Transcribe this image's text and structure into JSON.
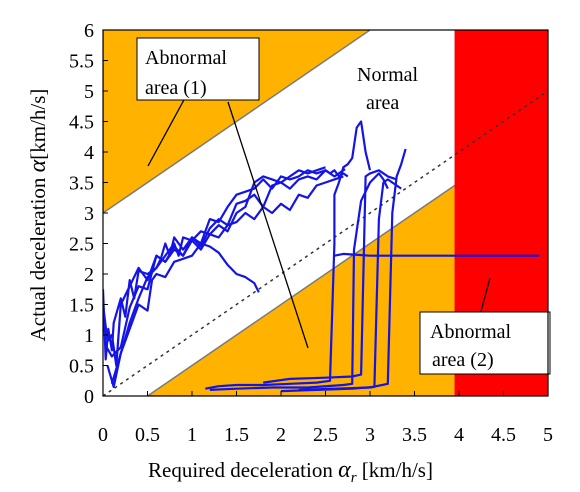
{
  "chart_data": {
    "type": "line",
    "xlabel_main": "Required deceleration ",
    "xlabel_symbol": "α",
    "xlabel_sub": "r",
    "xlabel_unit": " [km/h/s]",
    "ylabel_main": "Actual deceleration ",
    "ylabel_symbol": "α",
    "ylabel_unit": "[km/h/s]",
    "xlim": [
      0,
      5
    ],
    "ylim": [
      0,
      6
    ],
    "x_ticks": [
      "0",
      "0.5",
      "1",
      "1.5",
      "2",
      "2.5",
      "3",
      "3.5",
      "4",
      "4.5",
      "5"
    ],
    "y_ticks": [
      "0",
      "0.5",
      "1",
      "1.5",
      "2",
      "2.5",
      "3",
      "3.5",
      "4",
      "4.5",
      "5",
      "5.5",
      "6"
    ],
    "colors": {
      "abnormal_orange": "#FFB300",
      "abnormal_red": "#FF0000",
      "traces": "#1414E6",
      "boundary": "#7a7a7a"
    },
    "reference_line": {
      "x": [
        0,
        5
      ],
      "y": [
        0,
        5
      ]
    },
    "upper_boundary": {
      "x": [
        0,
        5
      ],
      "y": [
        3,
        8
      ]
    },
    "lower_boundary": {
      "x": [
        0.5,
        5
      ],
      "y": [
        0,
        4.5
      ]
    },
    "red_region_x": [
      3.95,
      5
    ],
    "annotations": {
      "abnormal1_line1": "Abnor",
      "abnormal1_line2": "mal",
      "abnormal1_line3": "area (1)",
      "normal_line1": "Normal",
      "normal_line2": "area",
      "abnormal2_line1": "Abnormal",
      "abnormal2_line2": "area (2)"
    },
    "series": [
      {
        "x": [
          0.0,
          0.03,
          0.06,
          0.1,
          0.12,
          0.2,
          0.25,
          0.3,
          0.35,
          0.4,
          0.5,
          0.6,
          0.65,
          0.7,
          0.75,
          0.8,
          0.9,
          1.0,
          1.1,
          1.2,
          1.3,
          1.4,
          1.5,
          1.6,
          1.7,
          1.8,
          1.9,
          2.0,
          2.1,
          2.2,
          2.3,
          2.4,
          2.5,
          2.6,
          2.65,
          2.7,
          2.72
        ],
        "y": [
          1.75,
          0.6,
          1.1,
          0.75,
          1.2,
          1.6,
          1.3,
          1.9,
          1.6,
          2.05,
          2.0,
          2.1,
          2.25,
          2.5,
          2.3,
          2.6,
          2.4,
          2.6,
          2.45,
          2.75,
          2.9,
          2.8,
          3.15,
          3.2,
          3.3,
          3.1,
          3.45,
          3.5,
          3.4,
          3.55,
          3.6,
          3.55,
          3.7,
          3.6,
          3.65,
          3.7,
          3.72
        ]
      },
      {
        "x": [
          0.0,
          0.05,
          0.1,
          0.15,
          0.2,
          0.3,
          0.4,
          0.5,
          0.6,
          0.7,
          0.8,
          0.9,
          1.0,
          1.1,
          1.2,
          1.3,
          1.4,
          1.5,
          1.6,
          1.7,
          1.8,
          1.9,
          2.0,
          2.1,
          2.2,
          2.3,
          2.4,
          2.5,
          2.55,
          2.6,
          2.65,
          2.7,
          2.75
        ],
        "y": [
          1.5,
          0.9,
          1.0,
          0.5,
          1.5,
          1.8,
          2.1,
          1.9,
          2.3,
          2.2,
          2.4,
          2.3,
          2.6,
          2.5,
          2.9,
          2.85,
          3.1,
          3.3,
          3.35,
          3.4,
          3.55,
          3.4,
          3.6,
          3.55,
          3.6,
          3.7,
          3.65,
          3.7,
          3.65,
          3.7,
          3.6,
          3.65,
          3.6
        ]
      },
      {
        "x": [
          0.02,
          0.1,
          0.2,
          0.3,
          0.4,
          0.5,
          0.6,
          0.7,
          0.8,
          0.9,
          1.0,
          1.1,
          1.2,
          1.3,
          1.4,
          1.5,
          1.6,
          1.7,
          1.8,
          1.9,
          2.0,
          2.1,
          2.2,
          2.3,
          2.4,
          2.5,
          2.6,
          2.7
        ],
        "y": [
          0.85,
          0.65,
          0.8,
          1.45,
          1.8,
          1.75,
          2.3,
          2.2,
          2.45,
          2.3,
          2.55,
          2.4,
          2.65,
          2.6,
          2.8,
          2.85,
          3.0,
          2.9,
          3.1,
          3.0,
          3.15,
          3.05,
          3.3,
          3.25,
          3.45,
          3.5,
          3.55,
          3.6
        ]
      },
      {
        "x": [
          0.05,
          0.12,
          0.2,
          0.3,
          0.4,
          0.5,
          0.55,
          0.6,
          0.7,
          0.8,
          0.9,
          1.0,
          1.1,
          1.2,
          1.3,
          1.4,
          1.5,
          1.6,
          1.7,
          1.75
        ],
        "y": [
          0.5,
          0.15,
          0.7,
          1.1,
          1.5,
          1.4,
          1.9,
          2.0,
          1.95,
          2.2,
          2.25,
          2.3,
          2.5,
          2.45,
          2.35,
          2.15,
          2.0,
          1.95,
          1.85,
          1.7
        ]
      },
      {
        "x": [
          0.1,
          0.2,
          0.3,
          0.4,
          0.5,
          0.6,
          0.7,
          0.8,
          0.85,
          0.9,
          1.0,
          1.1,
          1.2,
          1.3,
          1.4,
          1.5,
          1.6,
          1.7,
          1.8,
          1.9,
          2.0,
          2.1,
          2.2,
          2.3,
          2.4,
          2.5
        ],
        "y": [
          0.2,
          0.7,
          1.2,
          1.6,
          1.95,
          2.1,
          2.3,
          2.5,
          2.3,
          2.6,
          2.55,
          2.7,
          2.65,
          2.8,
          2.7,
          3.0,
          3.1,
          3.5,
          3.6,
          3.55,
          3.5,
          3.6,
          3.7,
          3.65,
          3.7,
          3.75
        ]
      },
      {
        "x": [
          1.15,
          1.3,
          1.5,
          1.8,
          2.1,
          2.4,
          2.55,
          2.6,
          2.6,
          2.65,
          2.7,
          2.75,
          2.8,
          2.85,
          2.9,
          2.95,
          3.0
        ],
        "y": [
          0.12,
          0.16,
          0.18,
          0.18,
          0.2,
          0.22,
          0.25,
          2.5,
          3.3,
          3.5,
          3.75,
          3.8,
          3.9,
          4.4,
          4.5,
          4.0,
          3.7
        ]
      },
      {
        "x": [
          1.2,
          1.5,
          1.9,
          2.3,
          2.7,
          2.8,
          2.82,
          2.9,
          3.0,
          3.1,
          3.15,
          3.2
        ],
        "y": [
          0.1,
          0.12,
          0.14,
          0.14,
          0.18,
          0.2,
          2.4,
          3.2,
          3.5,
          3.65,
          3.55,
          3.4
        ]
      },
      {
        "x": [
          1.8,
          2.1,
          2.5,
          2.8,
          2.9,
          2.95,
          3.0,
          3.1,
          3.2,
          3.3
        ],
        "y": [
          0.22,
          0.28,
          0.3,
          0.32,
          0.35,
          3.6,
          3.65,
          3.7,
          3.6,
          3.55
        ]
      },
      {
        "x": [
          2.0,
          2.4,
          2.8,
          3.05,
          3.1,
          3.15,
          3.2,
          3.25,
          3.3,
          3.35
        ],
        "y": [
          0.08,
          0.1,
          0.12,
          0.15,
          2.9,
          3.5,
          3.55,
          3.5,
          3.45,
          3.4
        ]
      },
      {
        "x": [
          2.2,
          2.6,
          3.0,
          3.2,
          3.25,
          3.3,
          3.35,
          3.4
        ],
        "y": [
          0.1,
          0.12,
          0.14,
          0.2,
          3.0,
          3.6,
          3.8,
          4.05
        ]
      },
      {
        "x": [
          2.6,
          2.7,
          2.8,
          3.0,
          3.5,
          4.0,
          4.5,
          4.9
        ],
        "y": [
          2.3,
          2.33,
          2.32,
          2.3,
          2.3,
          2.3,
          2.3,
          2.3
        ]
      }
    ]
  }
}
